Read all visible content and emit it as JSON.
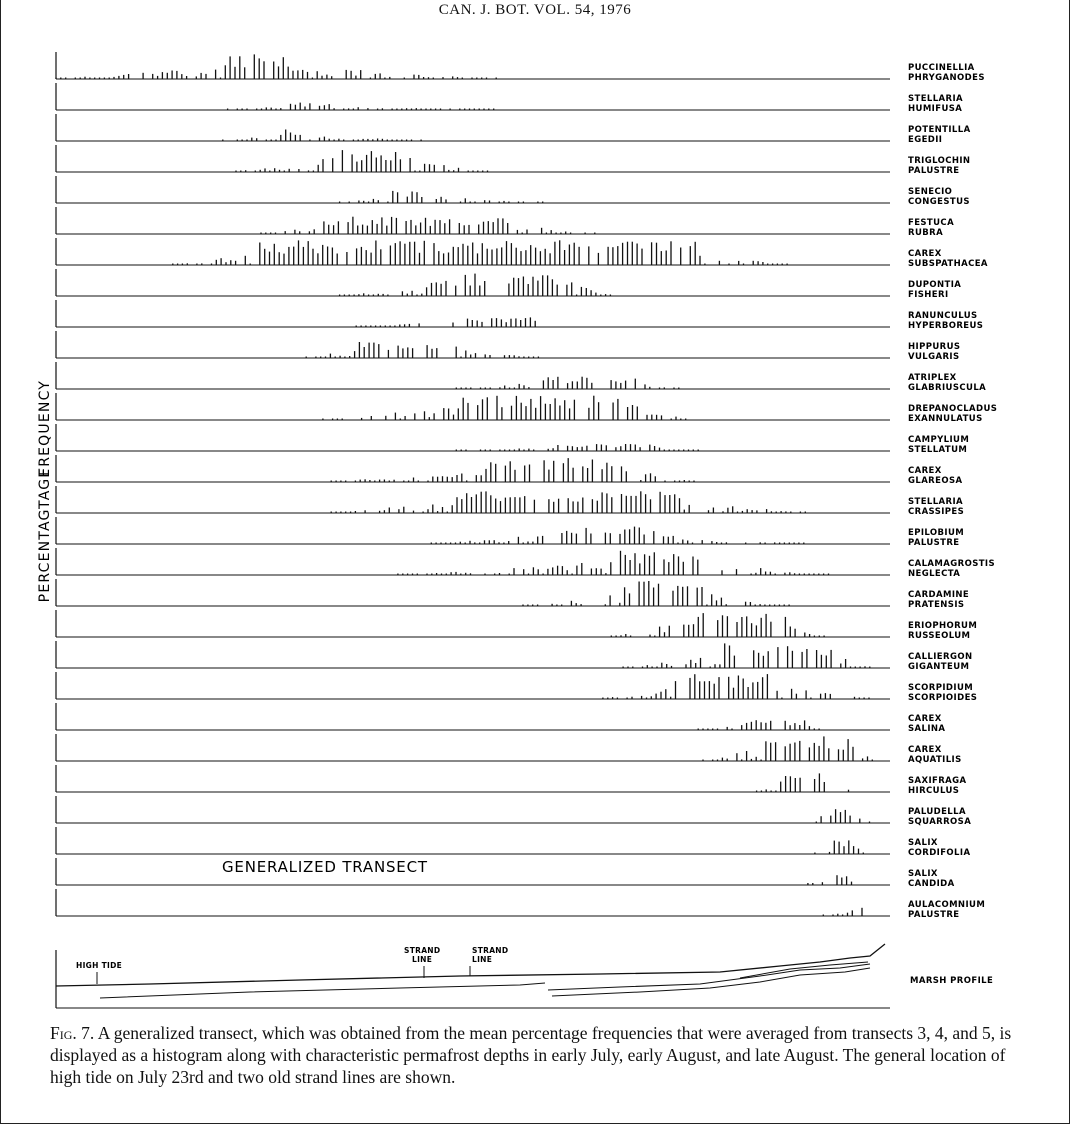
{
  "running_head": "CAN. J. BOT. VOL. 54, 1976",
  "y_axis_label": {
    "line1": "FREQUENCY",
    "line2": "PERCENTAGTAGE"
  },
  "generalized_label": "GENERALIZED TRANSECT",
  "species": [
    {
      "line1": "PUCCINELLIA",
      "line2": "PHRYGANODES"
    },
    {
      "line1": "STELLARIA",
      "line2": "HUMIFUSA"
    },
    {
      "line1": "POTENTILLA",
      "line2": "EGEDII"
    },
    {
      "line1": "TRIGLOCHIN",
      "line2": "PALUSTRE"
    },
    {
      "line1": "SENECIO",
      "line2": "CONGESTUS"
    },
    {
      "line1": "FESTUCA",
      "line2": "RUBRA"
    },
    {
      "line1": "CAREX",
      "line2": "SUBSPATHACEA"
    },
    {
      "line1": "DUPONTIA",
      "line2": "FISHERI"
    },
    {
      "line1": "RANUNCULUS",
      "line2": "HYPERBOREUS"
    },
    {
      "line1": "HIPPURUS",
      "line2": "VULGARIS"
    },
    {
      "line1": "ATRIPLEX",
      "line2": "GLABRIUSCULA"
    },
    {
      "line1": "DREPANOCLADUS",
      "line2": "EXANNULATUS"
    },
    {
      "line1": "CAMPYLIUM",
      "line2": "STELLATUM"
    },
    {
      "line1": "CAREX",
      "line2": "GLAREOSA"
    },
    {
      "line1": "STELLARIA",
      "line2": "CRASSIPES"
    },
    {
      "line1": "EPILOBIUM",
      "line2": "PALUSTRE"
    },
    {
      "line1": "CALAMAGROSTIS",
      "line2": "NEGLECTA"
    },
    {
      "line1": "CARDAMINE",
      "line2": "PRATENSIS"
    },
    {
      "line1": "ERIOPHORUM",
      "line2": "RUSSEOLUM"
    },
    {
      "line1": "CALLIERGON",
      "line2": "GIGANTEUM"
    },
    {
      "line1": "SCORPIDIUM",
      "line2": "SCORPIOIDES"
    },
    {
      "line1": "CAREX",
      "line2": "SALINA"
    },
    {
      "line1": "CAREX",
      "line2": "AQUATILIS"
    },
    {
      "line1": "SAXIFRAGA",
      "line2": "HIRCULUS"
    },
    {
      "line1": "PALUDELLA",
      "line2": "SQUARROSA"
    },
    {
      "line1": "SALIX",
      "line2": "CORDIFOLIA"
    },
    {
      "line1": "SALIX",
      "line2": "CANDIDA"
    },
    {
      "line1": "AULACOMNIUM",
      "line2": "PALUSTRE"
    }
  ],
  "profile": {
    "label": "MARSH PROFILE",
    "high_tide": "HIGH TIDE",
    "strand1": {
      "line1": "STRAND",
      "line2": "LINE"
    },
    "strand2": {
      "line1": "STRAND",
      "line2": "LINE"
    }
  },
  "caption": {
    "fig_label": "Fig. 7.",
    "text": " A generalized transect, which was obtained from the mean percentage frequencies that were averaged from transects 3, 4, and 5, is displayed as a histogram along with characteristic permafrost depths in early July, early August, and late August. The general location of high tide on July 23rd and two old strand lines are shown."
  },
  "chart_data": {
    "type": "bar",
    "title": "",
    "xlabel": "",
    "ylabel": "PERCENTAGTAGE FREQUENCY",
    "note": "Vertical histogram bars per species along the transect (relative frequency 0-1); extents per species",
    "series": [
      {
        "name": "PUCCINELLIA PHRYGANODES",
        "range": [
          0.0,
          0.53
        ],
        "peak": [
          0.2,
          0.28
        ],
        "max": 1.0
      },
      {
        "name": "STELLARIA HUMIFUSA",
        "range": [
          0.2,
          0.53
        ],
        "peak": [
          0.27,
          0.33
        ],
        "max": 0.3
      },
      {
        "name": "POTENTILLA EGEDII",
        "range": [
          0.2,
          0.44
        ],
        "peak": [
          0.27,
          0.29
        ],
        "max": 0.5
      },
      {
        "name": "TRIGLOCHIN PALUSTRE",
        "range": [
          0.21,
          0.52
        ],
        "peak": [
          0.32,
          0.43
        ],
        "max": 0.9
      },
      {
        "name": "SENECIO CONGESTUS",
        "range": [
          0.34,
          0.59
        ],
        "peak": [
          0.4,
          0.45
        ],
        "max": 0.5
      },
      {
        "name": "FESTUCA RUBRA",
        "range": [
          0.24,
          0.65
        ],
        "peak": [
          0.32,
          0.55
        ],
        "max": 0.7
      },
      {
        "name": "CAREX SUBSPATHACEA",
        "range": [
          0.14,
          0.88
        ],
        "peak": [
          0.24,
          0.77
        ],
        "max": 1.0
      },
      {
        "name": "DUPONTIA FISHERI",
        "range": [
          0.34,
          0.67
        ],
        "peak": [
          0.45,
          0.62
        ],
        "max": 0.9
      },
      {
        "name": "RANUNCULUS HYPERBOREUS",
        "range": [
          0.36,
          0.58
        ],
        "peak": [
          0.46,
          0.58
        ],
        "max": 0.4
      },
      {
        "name": "HIPPURUS VULGARIS",
        "range": [
          0.3,
          0.58
        ],
        "peak": [
          0.36,
          0.48
        ],
        "max": 0.7
      },
      {
        "name": "ATRIPLEX GLABRIUSCULA",
        "range": [
          0.48,
          0.75
        ],
        "peak": [
          0.58,
          0.7
        ],
        "max": 0.5
      },
      {
        "name": "DREPANOCLADUS EXANNULATUS",
        "range": [
          0.32,
          0.76
        ],
        "peak": [
          0.48,
          0.7
        ],
        "max": 1.0
      },
      {
        "name": "CAMPYLIUM STELLATUM",
        "range": [
          0.48,
          0.78
        ],
        "peak": [
          0.6,
          0.72
        ],
        "max": 0.3
      },
      {
        "name": "CAREX GLAREOSA",
        "range": [
          0.33,
          0.77
        ],
        "peak": [
          0.52,
          0.68
        ],
        "max": 1.0
      },
      {
        "name": "STELLARIA CRASSIPES",
        "range": [
          0.33,
          0.9
        ],
        "peak": [
          0.48,
          0.75
        ],
        "max": 0.9
      },
      {
        "name": "EPILOBIUM PALUSTRE",
        "range": [
          0.45,
          0.9
        ],
        "peak": [
          0.58,
          0.72
        ],
        "max": 0.7
      },
      {
        "name": "CALAMAGROSTIS NEGLECTA",
        "range": [
          0.41,
          0.93
        ],
        "peak": [
          0.66,
          0.77
        ],
        "max": 1.0
      },
      {
        "name": "CARDAMINE PRATENSIS",
        "range": [
          0.56,
          0.88
        ],
        "peak": [
          0.68,
          0.78
        ],
        "max": 1.0
      },
      {
        "name": "ERIOPHORUM RUSSEOLUM",
        "range": [
          0.66,
          0.93
        ],
        "peak": [
          0.74,
          0.88
        ],
        "max": 1.0
      },
      {
        "name": "CALLIERGON GIGANTEUM",
        "range": [
          0.68,
          0.98
        ],
        "peak": [
          0.8,
          0.93
        ],
        "max": 1.0
      },
      {
        "name": "SCORPIDIUM SCORPIOIDES",
        "range": [
          0.65,
          0.98
        ],
        "peak": [
          0.74,
          0.86
        ],
        "max": 1.0
      },
      {
        "name": "CAREX SALINA",
        "range": [
          0.77,
          0.92
        ],
        "peak": [
          0.82,
          0.9
        ],
        "max": 0.4
      },
      {
        "name": "CAREX AQUATILIS",
        "range": [
          0.77,
          0.98
        ],
        "peak": [
          0.85,
          0.96
        ],
        "max": 1.0
      },
      {
        "name": "SAXIFRAGA HIRCULUS",
        "range": [
          0.84,
          0.96
        ],
        "peak": [
          0.87,
          0.93
        ],
        "max": 0.8
      },
      {
        "name": "PALUDELLA SQUARROSA",
        "range": [
          0.9,
          0.98
        ],
        "peak": [
          0.92,
          0.95
        ],
        "max": 0.6
      },
      {
        "name": "SALIX CORDIFOLIA",
        "range": [
          0.91,
          0.97
        ],
        "peak": [
          0.93,
          0.96
        ],
        "max": 0.6
      },
      {
        "name": "SALIX CANDIDA",
        "range": [
          0.89,
          0.97
        ],
        "peak": [
          0.92,
          0.95
        ],
        "max": 0.4
      },
      {
        "name": "AULACOMNIUM PALUSTRE",
        "range": [
          0.92,
          0.97
        ],
        "peak": [
          0.95,
          0.97
        ],
        "max": 0.4
      }
    ]
  }
}
